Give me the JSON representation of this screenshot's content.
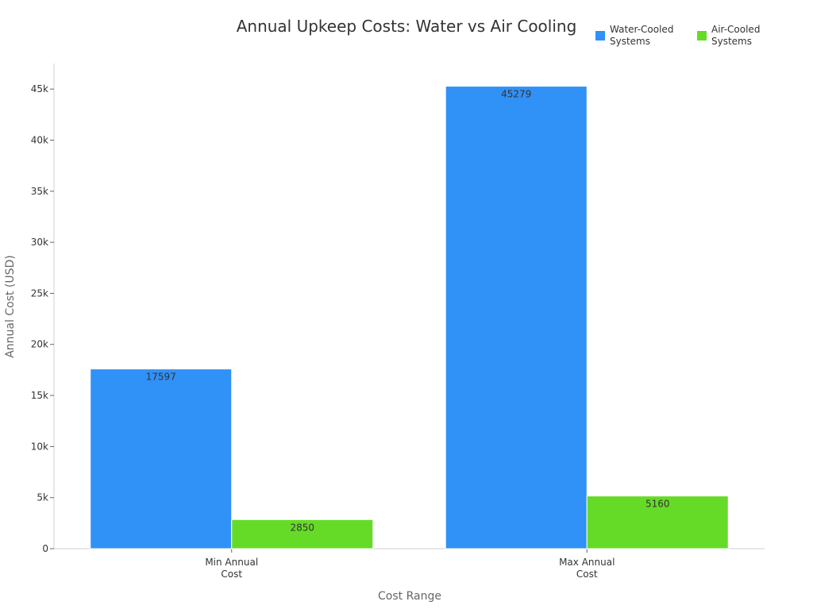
{
  "chart_data": {
    "type": "bar",
    "title": "Annual Upkeep Costs: Water vs Air Cooling",
    "xlabel": "Cost Range",
    "ylabel": "Annual Cost (USD)",
    "categories": [
      "Min Annual\nCost",
      "Max Annual\nCost"
    ],
    "series": [
      {
        "name": "Water-Cooled\nSystems",
        "color": "#3091f7",
        "values": [
          17597,
          45279
        ]
      },
      {
        "name": "Air-Cooled\nSystems",
        "color": "#66db27",
        "values": [
          2850,
          5160
        ]
      }
    ],
    "ylim": [
      0,
      47500
    ],
    "yticks": [
      0,
      5000,
      10000,
      15000,
      20000,
      25000,
      30000,
      35000,
      40000,
      45000
    ],
    "ytick_labels": [
      "0",
      "5k",
      "10k",
      "15k",
      "20k",
      "25k",
      "30k",
      "35k",
      "40k",
      "45k"
    ],
    "grid": false,
    "legend_position": "top-right"
  }
}
